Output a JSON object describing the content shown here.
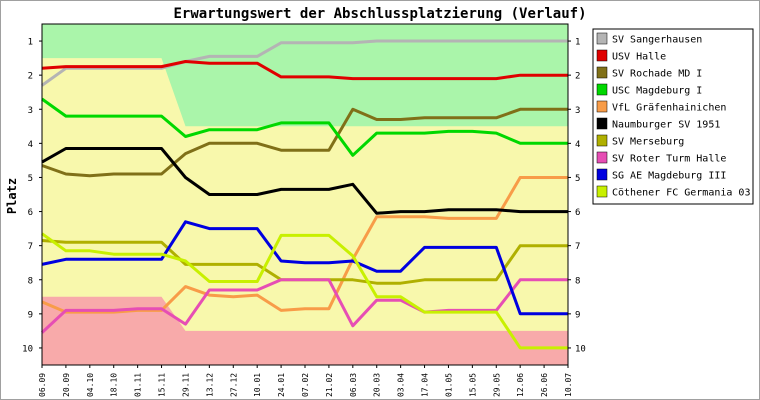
{
  "chart_data": {
    "type": "line",
    "title": "Erwartungswert der Abschlussplatzierung (Verlauf)",
    "ylabel": "Platz",
    "xlabel": "",
    "ylim": [
      0.5,
      10.5
    ],
    "y_reversed": true,
    "y_ticks": [
      "1",
      "2",
      "3",
      "4",
      "5",
      "6",
      "7",
      "8",
      "9",
      "10"
    ],
    "x": [
      "06.09",
      "20.09",
      "04.10",
      "18.10",
      "01.11",
      "15.11",
      "29.11",
      "13.12",
      "27.12",
      "10.01",
      "24.01",
      "07.02",
      "21.02",
      "06.03",
      "20.03",
      "03.04",
      "17.04",
      "01.05",
      "15.05",
      "29.05",
      "12.06",
      "26.06",
      "10.07"
    ],
    "grid": false,
    "legend_position": "right",
    "zones": [
      {
        "name": "promotion",
        "color": "#aaf5aa",
        "to": [
          1.5,
          1.5,
          1.5,
          1.5,
          1.5,
          1.5,
          3.5,
          3.5,
          3.5,
          3.5,
          3.5,
          3.5,
          3.5,
          3.5,
          3.5,
          3.5,
          3.5,
          3.5,
          3.5,
          3.5,
          3.5,
          3.5,
          3.5
        ]
      },
      {
        "name": "relegation",
        "color": "#f8aaaa",
        "from": [
          8.5,
          8.5,
          8.5,
          8.5,
          8.5,
          8.5,
          9.5,
          9.5,
          9.5,
          9.5,
          9.5,
          9.5,
          9.5,
          9.5,
          9.5,
          9.5,
          9.5,
          9.5,
          9.5,
          9.5,
          9.5,
          9.5,
          9.5
        ]
      },
      {
        "name": "middle",
        "color": "#f8f8ac"
      }
    ],
    "series": [
      {
        "name": "SV Sangerhausen",
        "color": "#b4b4b4",
        "values": [
          2.3,
          1.8,
          1.8,
          1.8,
          1.8,
          1.8,
          1.6,
          1.45,
          1.45,
          1.45,
          1.05,
          1.05,
          1.05,
          1.05,
          1.0,
          1.0,
          1.0,
          1.0,
          1.0,
          1.0,
          1.0,
          1.0,
          1.0
        ]
      },
      {
        "name": "USV Halle",
        "color": "#e00000",
        "values": [
          1.8,
          1.75,
          1.75,
          1.75,
          1.75,
          1.75,
          1.6,
          1.65,
          1.65,
          1.65,
          2.05,
          2.05,
          2.05,
          2.1,
          2.1,
          2.1,
          2.1,
          2.1,
          2.1,
          2.1,
          2.0,
          2.0,
          2.0
        ]
      },
      {
        "name": "SV Rochade MD I",
        "color": "#807018",
        "values": [
          4.65,
          4.9,
          4.95,
          4.9,
          4.9,
          4.9,
          4.3,
          4.0,
          4.0,
          4.0,
          4.2,
          4.2,
          4.2,
          3.0,
          3.3,
          3.3,
          3.25,
          3.25,
          3.25,
          3.25,
          3.0,
          3.0,
          3.0
        ]
      },
      {
        "name": "USC Magdeburg I",
        "color": "#00d800",
        "values": [
          2.7,
          3.2,
          3.2,
          3.2,
          3.2,
          3.2,
          3.8,
          3.6,
          3.6,
          3.6,
          3.4,
          3.4,
          3.4,
          4.35,
          3.7,
          3.7,
          3.7,
          3.65,
          3.65,
          3.7,
          4.0,
          4.0,
          4.0
        ]
      },
      {
        "name": "VfL Gräfenhainichen",
        "color": "#f89c48",
        "values": [
          8.65,
          8.95,
          8.95,
          8.95,
          8.9,
          8.9,
          8.2,
          8.45,
          8.5,
          8.45,
          8.9,
          8.85,
          8.85,
          7.4,
          6.15,
          6.15,
          6.15,
          6.2,
          6.2,
          6.2,
          5.0,
          5.0,
          5.0
        ]
      },
      {
        "name": "Naumburger SV 1951",
        "color": "#000000",
        "values": [
          4.55,
          4.15,
          4.15,
          4.15,
          4.15,
          4.15,
          5.0,
          5.5,
          5.5,
          5.5,
          5.35,
          5.35,
          5.35,
          5.2,
          6.05,
          6.0,
          6.0,
          5.95,
          5.95,
          5.95,
          6.0,
          6.0,
          6.0
        ]
      },
      {
        "name": "SV Merseburg",
        "color": "#b0b000",
        "values": [
          6.85,
          6.9,
          6.9,
          6.9,
          6.9,
          6.9,
          7.55,
          7.55,
          7.55,
          7.55,
          8.0,
          8.0,
          8.0,
          8.0,
          8.1,
          8.1,
          8.0,
          8.0,
          8.0,
          8.0,
          7.0,
          7.0,
          7.0
        ]
      },
      {
        "name": "SV Roter Turm Halle",
        "color": "#e64eb4",
        "values": [
          9.55,
          8.9,
          8.9,
          8.9,
          8.85,
          8.85,
          9.3,
          8.3,
          8.3,
          8.3,
          8.0,
          8.0,
          8.0,
          9.35,
          8.6,
          8.6,
          8.95,
          8.9,
          8.9,
          8.9,
          8.0,
          8.0,
          8.0
        ]
      },
      {
        "name": "SG AE Magdeburg III",
        "color": "#0000e0",
        "values": [
          7.55,
          7.4,
          7.4,
          7.4,
          7.4,
          7.4,
          6.3,
          6.5,
          6.5,
          6.5,
          7.45,
          7.5,
          7.5,
          7.45,
          7.75,
          7.75,
          7.05,
          7.05,
          7.05,
          7.05,
          9.0,
          9.0,
          9.0
        ]
      },
      {
        "name": "Cöthener FC Germania 03",
        "color": "#c8f000",
        "values": [
          6.65,
          7.15,
          7.15,
          7.25,
          7.25,
          7.25,
          7.45,
          8.05,
          8.05,
          8.05,
          6.7,
          6.7,
          6.7,
          7.3,
          8.5,
          8.5,
          8.95,
          8.95,
          8.95,
          8.95,
          10.0,
          10.0,
          10.0
        ]
      }
    ]
  }
}
